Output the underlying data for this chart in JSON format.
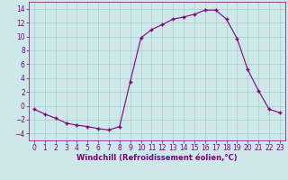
{
  "x": [
    0,
    1,
    2,
    3,
    4,
    5,
    6,
    7,
    8,
    9,
    10,
    11,
    12,
    13,
    14,
    15,
    16,
    17,
    18,
    19,
    20,
    21,
    22,
    23
  ],
  "y": [
    -0.5,
    -1.2,
    -1.8,
    -2.5,
    -2.8,
    -3.0,
    -3.3,
    -3.5,
    -3.0,
    3.5,
    9.8,
    11.0,
    11.7,
    12.5,
    12.8,
    13.2,
    13.8,
    13.8,
    12.5,
    9.7,
    5.2,
    2.2,
    -0.5,
    -1.0
  ],
  "line_color": "#800080",
  "marker": "P",
  "marker_size": 2.5,
  "bg_color": "#cce8e8",
  "grid_color": "#aacccc",
  "xlabel": "Windchill (Refroidissement éolien,°C)",
  "xlabel_color": "#800080",
  "xlabel_fontsize": 6,
  "tick_color": "#800080",
  "tick_fontsize": 5.5,
  "ylim": [
    -5,
    15
  ],
  "xlim": [
    -0.5,
    23.5
  ],
  "yticks": [
    -4,
    -2,
    0,
    2,
    4,
    6,
    8,
    10,
    12,
    14
  ],
  "xticks": [
    0,
    1,
    2,
    3,
    4,
    5,
    6,
    7,
    8,
    9,
    10,
    11,
    12,
    13,
    14,
    15,
    16,
    17,
    18,
    19,
    20,
    21,
    22,
    23
  ]
}
